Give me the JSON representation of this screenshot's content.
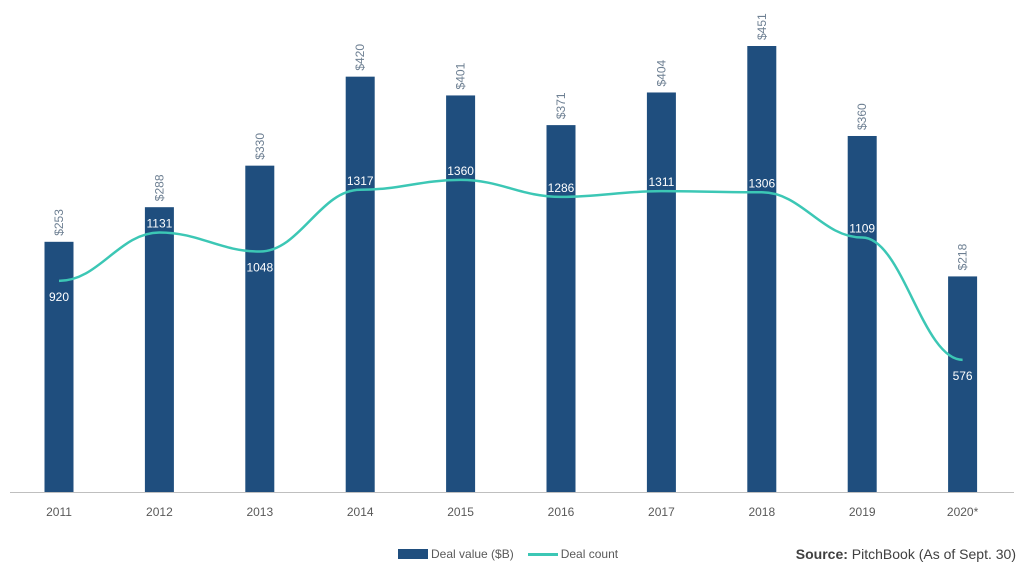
{
  "colors": {
    "bar": "#1f4e7e",
    "line": "#3cc7b5",
    "axis": "#bfbfbf"
  },
  "chart_data": {
    "type": "bar",
    "categories": [
      "2011",
      "2012",
      "2013",
      "2014",
      "2015",
      "2016",
      "2017",
      "2018",
      "2019",
      "2020*"
    ],
    "series": [
      {
        "name": "Deal value ($B)",
        "type": "bar",
        "values": [
          253,
          288,
          330,
          420,
          401,
          371,
          404,
          451,
          360,
          218
        ],
        "labels": [
          "$253",
          "$288",
          "$330",
          "$420",
          "$401",
          "$371",
          "$404",
          "$451",
          "$360",
          "$218"
        ]
      },
      {
        "name": "Deal count",
        "type": "line",
        "values": [
          920,
          1131,
          1048,
          1317,
          1360,
          1286,
          1311,
          1306,
          1109,
          576
        ],
        "labels": [
          "920",
          "1131",
          "1048",
          "1317",
          "1360",
          "1286",
          "1311",
          "1306",
          "1109",
          "576"
        ]
      }
    ],
    "ylim_value": [
      0,
      451
    ],
    "ylim_count": [
      0,
      1900
    ],
    "legend_position": "bottom-center",
    "grid": false
  },
  "source": {
    "label": "Source:",
    "text": "PitchBook (As of Sept. 30)"
  }
}
